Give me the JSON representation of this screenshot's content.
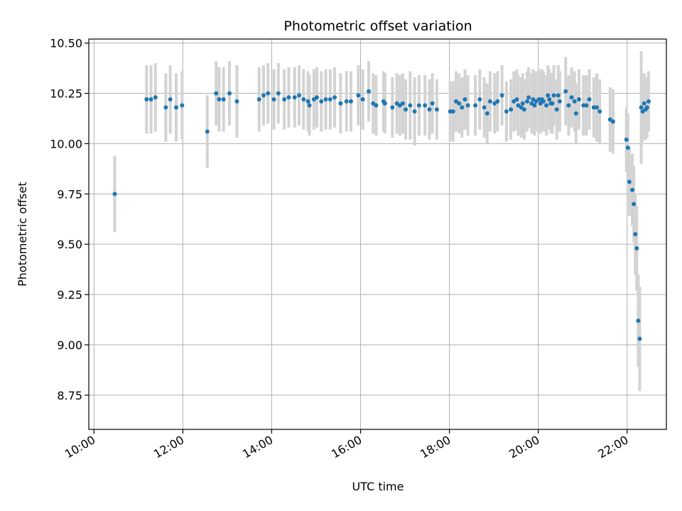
{
  "chart_data": {
    "type": "scatter",
    "title": "Photometric offset variation",
    "xlabel": "UTC time",
    "ylabel": "Photometric offset",
    "xlim": [
      "09:53",
      "22:53"
    ],
    "ylim": [
      8.58,
      10.52
    ],
    "x_ticks": [
      "10:00",
      "12:00",
      "14:00",
      "16:00",
      "18:00",
      "20:00",
      "22:00"
    ],
    "y_ticks": [
      "8.75",
      "9.00",
      "9.25",
      "9.50",
      "9.75",
      "10.00",
      "10.25",
      "10.50"
    ],
    "grid": true,
    "legend": "none",
    "colors": {
      "points": "#1f77b4",
      "error_bars": "#d3d3d3",
      "grid": "#b0b0b0"
    },
    "series": [
      {
        "x": [
          "10:28",
          "11:11",
          "11:17",
          "11:23",
          "11:37",
          "11:43",
          "11:51",
          "11:59",
          "12:33",
          "12:45",
          "12:49",
          "12:55",
          "13:03",
          "13:13",
          "13:43",
          "13:49",
          "13:55",
          "14:03",
          "14:09",
          "14:17",
          "14:23",
          "14:31",
          "14:37",
          "14:43",
          "14:49",
          "14:51",
          "14:57",
          "15:01",
          "15:07",
          "15:13",
          "15:19",
          "15:25",
          "15:33",
          "15:41",
          "15:47",
          "15:57",
          "16:03",
          "16:11",
          "16:17",
          "16:21",
          "16:31",
          "16:33",
          "16:43",
          "16:49",
          "16:53",
          "16:57",
          "17:01",
          "17:07",
          "17:13",
          "17:19",
          "17:27",
          "17:33",
          "17:37",
          "17:43",
          "18:01",
          "18:05",
          "18:09",
          "18:13",
          "18:17",
          "18:21",
          "18:25",
          "18:35",
          "18:41",
          "18:47",
          "18:51",
          "18:55",
          "19:01",
          "19:05",
          "19:11",
          "19:17",
          "19:23",
          "19:27",
          "19:31",
          "19:33",
          "19:37",
          "19:39",
          "19:41",
          "19:45",
          "19:47",
          "19:51",
          "19:53",
          "19:55",
          "19:57",
          "20:01",
          "20:03",
          "20:05",
          "20:07",
          "20:11",
          "20:13",
          "20:15",
          "20:17",
          "20:19",
          "20:21",
          "20:25",
          "20:27",
          "20:29",
          "20:37",
          "20:41",
          "20:45",
          "20:49",
          "20:51",
          "20:55",
          "21:01",
          "21:05",
          "21:09",
          "21:15",
          "21:19",
          "21:23",
          "21:37",
          "21:41",
          "21:59",
          "22:01",
          "22:03",
          "22:07",
          "22:09",
          "22:11",
          "22:13",
          "22:15",
          "22:17",
          "22:19",
          "22:21",
          "22:23",
          "22:25",
          "22:27",
          "22:29"
        ],
        "y": [
          9.75,
          10.22,
          10.22,
          10.23,
          10.18,
          10.22,
          10.18,
          10.19,
          10.06,
          10.25,
          10.22,
          10.22,
          10.25,
          10.21,
          10.22,
          10.24,
          10.25,
          10.22,
          10.25,
          10.22,
          10.23,
          10.23,
          10.24,
          10.22,
          10.21,
          10.19,
          10.22,
          10.23,
          10.21,
          10.22,
          10.22,
          10.23,
          10.2,
          10.21,
          10.21,
          10.24,
          10.22,
          10.26,
          10.2,
          10.19,
          10.21,
          10.2,
          10.18,
          10.2,
          10.19,
          10.2,
          10.17,
          10.19,
          10.16,
          10.19,
          10.19,
          10.17,
          10.2,
          10.17,
          10.16,
          10.16,
          10.21,
          10.2,
          10.18,
          10.22,
          10.19,
          10.19,
          10.22,
          10.18,
          10.15,
          10.21,
          10.2,
          10.21,
          10.24,
          10.16,
          10.17,
          10.21,
          10.22,
          10.19,
          10.18,
          10.2,
          10.17,
          10.21,
          10.23,
          10.2,
          10.22,
          10.19,
          10.21,
          10.22,
          10.2,
          10.22,
          10.21,
          10.19,
          10.24,
          10.22,
          10.2,
          10.2,
          10.24,
          10.17,
          10.24,
          10.21,
          10.26,
          10.19,
          10.23,
          10.21,
          10.15,
          10.22,
          10.19,
          10.19,
          10.22,
          10.18,
          10.18,
          10.16,
          10.12,
          10.11,
          10.02,
          9.98,
          9.81,
          9.77,
          9.7,
          9.55,
          9.48,
          9.12,
          9.03,
          10.18,
          10.16,
          10.2,
          10.17,
          10.18,
          10.21
        ],
        "yerr": [
          0.19,
          0.17,
          0.17,
          0.17,
          0.17,
          0.17,
          0.17,
          0.17,
          0.18,
          0.16,
          0.16,
          0.16,
          0.16,
          0.18,
          0.16,
          0.15,
          0.15,
          0.15,
          0.15,
          0.15,
          0.15,
          0.15,
          0.15,
          0.15,
          0.15,
          0.15,
          0.15,
          0.15,
          0.15,
          0.15,
          0.15,
          0.15,
          0.15,
          0.15,
          0.15,
          0.15,
          0.15,
          0.15,
          0.15,
          0.15,
          0.15,
          0.15,
          0.15,
          0.15,
          0.15,
          0.15,
          0.15,
          0.17,
          0.17,
          0.15,
          0.15,
          0.15,
          0.15,
          0.15,
          0.15,
          0.15,
          0.15,
          0.15,
          0.15,
          0.15,
          0.15,
          0.15,
          0.15,
          0.15,
          0.15,
          0.15,
          0.15,
          0.15,
          0.15,
          0.15,
          0.15,
          0.15,
          0.15,
          0.15,
          0.15,
          0.15,
          0.15,
          0.15,
          0.15,
          0.15,
          0.15,
          0.15,
          0.15,
          0.15,
          0.15,
          0.15,
          0.15,
          0.15,
          0.15,
          0.15,
          0.15,
          0.15,
          0.15,
          0.15,
          0.15,
          0.15,
          0.17,
          0.15,
          0.15,
          0.15,
          0.15,
          0.15,
          0.15,
          0.15,
          0.15,
          0.15,
          0.17,
          0.16,
          0.16,
          0.16,
          0.16,
          0.17,
          0.17,
          0.18,
          0.19,
          0.2,
          0.21,
          0.23,
          0.26,
          0.28,
          0.15,
          0.15,
          0.15,
          0.15,
          0.15
        ]
      }
    ]
  }
}
